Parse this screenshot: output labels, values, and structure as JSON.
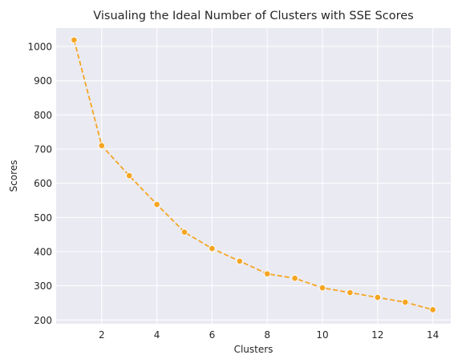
{
  "chart_data": {
    "type": "line",
    "title": "Visualing the Ideal Number of Clusters with SSE Scores",
    "xlabel": "Clusters",
    "ylabel": "Scores",
    "xlim": [
      0.35,
      14.65
    ],
    "ylim": [
      189,
      1054
    ],
    "xticks": [
      2,
      4,
      6,
      8,
      10,
      12,
      14
    ],
    "yticks": [
      200,
      300,
      400,
      500,
      600,
      700,
      800,
      900,
      1000
    ],
    "grid": true,
    "background": "#eaeaf2",
    "series": [
      {
        "color": "#f5a623",
        "line_style": "dashed",
        "marker": "circle",
        "x": [
          1,
          2,
          3,
          4,
          5,
          6,
          7,
          8,
          9,
          10,
          11,
          12,
          13,
          14
        ],
        "y": [
          1019,
          710,
          622,
          538,
          457,
          409,
          372,
          335,
          322,
          294,
          280,
          266,
          252,
          230
        ]
      }
    ]
  }
}
